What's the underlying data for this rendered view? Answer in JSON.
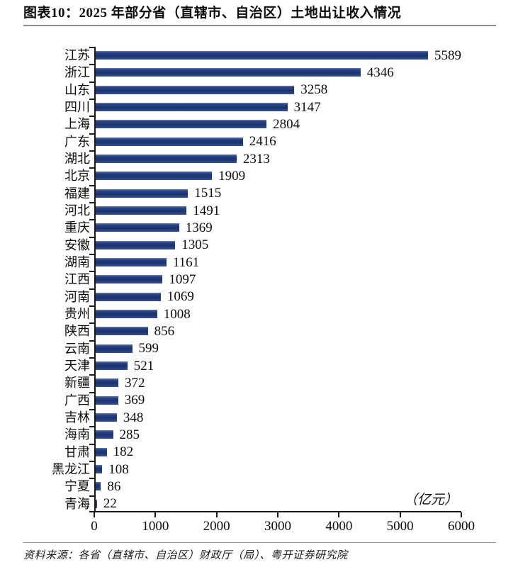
{
  "header": {
    "title": "图表10：2025 年部分省（直辖市、自治区）土地出让收入情况"
  },
  "chart_data": {
    "type": "bar",
    "orientation": "horizontal",
    "title": "图表10：2025 年部分省（直辖市、自治区）土地出让收入情况",
    "unit_label": "（亿元）",
    "categories": [
      "江苏",
      "浙江",
      "山东",
      "四川",
      "上海",
      "广东",
      "湖北",
      "北京",
      "福建",
      "河北",
      "重庆",
      "安徽",
      "湖南",
      "江西",
      "河南",
      "贵州",
      "陕西",
      "云南",
      "天津",
      "新疆",
      "广西",
      "吉林",
      "海南",
      "甘肃",
      "黑龙江",
      "宁夏",
      "青海"
    ],
    "values": [
      5589,
      4346,
      3258,
      3147,
      2804,
      2416,
      2313,
      1909,
      1515,
      1491,
      1369,
      1305,
      1161,
      1097,
      1069,
      1008,
      856,
      599,
      521,
      372,
      369,
      348,
      285,
      182,
      108,
      86,
      22
    ],
    "xlabel": "",
    "ylabel": "",
    "xlim": [
      0,
      6000
    ],
    "x_ticks": [
      0,
      1000,
      2000,
      3000,
      4000,
      5000,
      6000
    ],
    "bar_color": "#1d3a80",
    "value_labels_shown": true,
    "grid": false,
    "legend_position": "none"
  },
  "footer": {
    "source": "资料来源：各省（直辖市、自治区）财政厅（局）、粤开证券研究院"
  }
}
